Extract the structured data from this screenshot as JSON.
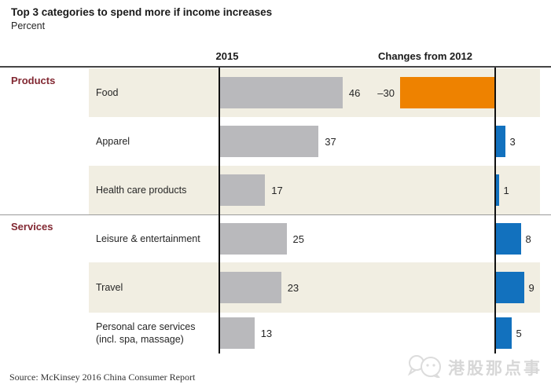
{
  "header": {
    "title": "Top 3 categories to spend more if income increases",
    "subtitle": "Percent"
  },
  "columns": {
    "col2015": "2015",
    "colChanges": "Changes from 2012"
  },
  "sections": [
    {
      "label": "Products",
      "rows": [
        {
          "label": "Food",
          "value2015": 46,
          "change": -30,
          "change_label": "–30",
          "shaded": true
        },
        {
          "label": "Apparel",
          "value2015": 37,
          "change": 3,
          "change_label": "3",
          "shaded": false
        },
        {
          "label": "Health care products",
          "value2015": 17,
          "change": 1,
          "change_label": "1",
          "shaded": true
        }
      ]
    },
    {
      "label": "Services",
      "rows": [
        {
          "label": "Leisure & entertainment",
          "value2015": 25,
          "change": 8,
          "change_label": "8",
          "shaded": false
        },
        {
          "label": "Travel",
          "value2015": 23,
          "change": 9,
          "change_label": "9",
          "shaded": true
        },
        {
          "label": "Personal care services",
          "label_line2": "(incl. spa, massage)",
          "value2015": 13,
          "change": 5,
          "change_label": "5",
          "shaded": false
        }
      ]
    }
  ],
  "chart_data": {
    "type": "bar",
    "orientation": "horizontal",
    "title": "Top 3 categories to spend more if income increases",
    "unit": "Percent",
    "categories": [
      "Food",
      "Apparel",
      "Health care products",
      "Leisure & entertainment",
      "Travel",
      "Personal care services (incl. spa, massage)"
    ],
    "series": [
      {
        "name": "2015",
        "values": [
          46,
          37,
          17,
          25,
          23,
          13
        ]
      },
      {
        "name": "Changes from 2012",
        "values": [
          -30,
          3,
          1,
          8,
          9,
          5
        ]
      }
    ],
    "groups": [
      {
        "name": "Products",
        "categories": [
          "Food",
          "Apparel",
          "Health care products"
        ]
      },
      {
        "name": "Services",
        "categories": [
          "Leisure & entertainment",
          "Travel",
          "Personal care services (incl. spa, massage)"
        ]
      }
    ],
    "legend_position": "none",
    "grid": false
  },
  "footer": {
    "source": "Source: McKinsey 2016 China Consumer Report",
    "watermark_text": "港股那点事"
  },
  "colors": {
    "bar_gray": "#b9b9bc",
    "bar_orange": "#ee8200",
    "bar_blue": "#1271be",
    "row_beige": "#f1eee2",
    "section_label": "#822832"
  }
}
